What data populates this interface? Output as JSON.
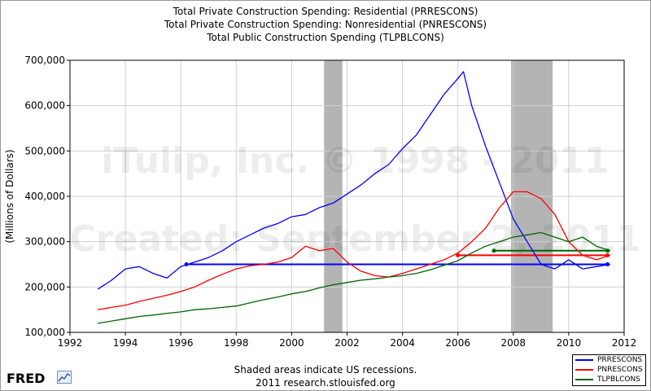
{
  "titles": [
    "Total Private Construction Spending: Residential (PRRESCONS)",
    "Total Private Construction Spending: Nonresidential (PNRESCONS)",
    "Total Public Construction Spending (TLPBLCONS)"
  ],
  "footer": {
    "line1": "Shaded areas indicate US recessions.",
    "line2": "2011 research.stlouisfed.org"
  },
  "logo": {
    "text": "FRED",
    "icon": "line-chart-icon"
  },
  "watermark": {
    "line1": "iTulip, Inc. © 1998 - 2011",
    "line2": "Created: September 2, 2011"
  },
  "colors": {
    "PRRESCONS": "#0000ff",
    "PNRESCONS": "#ff0000",
    "TLPBLCONS": "#006400",
    "recession": "#b4b4b4"
  },
  "chart_data": {
    "type": "line",
    "title": "Total Private Construction Spending: Residential (PRRESCONS) / Total Private Construction Spending: Nonresidential (PNRESCONS) / Total Public Construction Spending (TLPBLCONS)",
    "ylabel": "(Millions of Dollars)",
    "xlabel": "",
    "xlim": [
      1992,
      2012
    ],
    "ylim": [
      100000,
      700000
    ],
    "xticks": [
      1992,
      1994,
      1996,
      1998,
      2000,
      2002,
      2004,
      2006,
      2008,
      2010,
      2012
    ],
    "yticks": [
      100000,
      200000,
      300000,
      400000,
      500000,
      600000,
      700000
    ],
    "ytick_labels": [
      "100,000",
      "200,000",
      "300,000",
      "400,000",
      "500,000",
      "600,000",
      "700,000"
    ],
    "grid": true,
    "legend": "bottom-right",
    "recessions": [
      [
        2001.17,
        2001.83
      ],
      [
        2007.92,
        2009.42
      ]
    ],
    "series": [
      {
        "name": "PRRESCONS",
        "x": [
          1993.0,
          1993.5,
          1994.0,
          1994.5,
          1995.0,
          1995.5,
          1996.0,
          1996.5,
          1997.0,
          1997.5,
          1998.0,
          1998.5,
          1999.0,
          1999.5,
          2000.0,
          2000.5,
          2001.0,
          2001.5,
          2002.0,
          2002.5,
          2003.0,
          2003.5,
          2004.0,
          2004.5,
          2005.0,
          2005.5,
          2006.0,
          2006.2,
          2006.5,
          2007.0,
          2007.5,
          2008.0,
          2008.5,
          2009.0,
          2009.5,
          2010.0,
          2010.5,
          2011.0,
          2011.5
        ],
        "values": [
          195000,
          215000,
          240000,
          245000,
          230000,
          220000,
          245000,
          255000,
          265000,
          280000,
          300000,
          315000,
          330000,
          340000,
          355000,
          360000,
          375000,
          385000,
          405000,
          425000,
          450000,
          470000,
          505000,
          535000,
          580000,
          625000,
          660000,
          675000,
          600000,
          510000,
          430000,
          350000,
          300000,
          250000,
          240000,
          260000,
          240000,
          245000,
          250000
        ]
      },
      {
        "name": "PNRESCONS",
        "x": [
          1993.0,
          1993.5,
          1994.0,
          1994.5,
          1995.0,
          1995.5,
          1996.0,
          1996.5,
          1997.0,
          1997.5,
          1998.0,
          1998.5,
          1999.0,
          1999.5,
          2000.0,
          2000.5,
          2001.0,
          2001.5,
          2002.0,
          2002.5,
          2003.0,
          2003.5,
          2004.0,
          2004.5,
          2005.0,
          2005.5,
          2006.0,
          2006.5,
          2007.0,
          2007.5,
          2008.0,
          2008.5,
          2009.0,
          2009.5,
          2010.0,
          2010.5,
          2011.0,
          2011.5
        ],
        "values": [
          150000,
          155000,
          160000,
          168000,
          175000,
          182000,
          190000,
          200000,
          215000,
          228000,
          240000,
          247000,
          250000,
          255000,
          265000,
          290000,
          280000,
          285000,
          255000,
          235000,
          225000,
          222000,
          230000,
          240000,
          250000,
          260000,
          275000,
          300000,
          330000,
          375000,
          410000,
          410000,
          395000,
          360000,
          300000,
          270000,
          260000,
          270000
        ]
      },
      {
        "name": "TLPBLCONS",
        "x": [
          1993.0,
          1993.5,
          1994.0,
          1994.5,
          1995.0,
          1995.5,
          1996.0,
          1996.5,
          1997.0,
          1997.5,
          1998.0,
          1998.5,
          1999.0,
          1999.5,
          2000.0,
          2000.5,
          2001.0,
          2001.5,
          2002.0,
          2002.5,
          2003.0,
          2003.5,
          2004.0,
          2004.5,
          2005.0,
          2005.5,
          2006.0,
          2006.5,
          2007.0,
          2007.5,
          2008.0,
          2008.5,
          2009.0,
          2009.5,
          2010.0,
          2010.5,
          2011.0,
          2011.5
        ],
        "values": [
          120000,
          125000,
          130000,
          135000,
          138000,
          142000,
          145000,
          150000,
          152000,
          155000,
          158000,
          165000,
          172000,
          178000,
          185000,
          190000,
          198000,
          205000,
          210000,
          215000,
          218000,
          222000,
          225000,
          230000,
          238000,
          248000,
          258000,
          275000,
          290000,
          300000,
          310000,
          315000,
          320000,
          310000,
          300000,
          310000,
          290000,
          280000
        ]
      }
    ],
    "reference_lines": [
      {
        "series": "PRRESCONS",
        "x": [
          1996.2,
          2011.4
        ],
        "value": 250000
      },
      {
        "series": "PNRESCONS",
        "x": [
          2006.0,
          2011.4
        ],
        "value": 270000
      },
      {
        "series": "TLPBLCONS",
        "x": [
          2007.3,
          2011.4
        ],
        "value": 280000
      }
    ]
  }
}
